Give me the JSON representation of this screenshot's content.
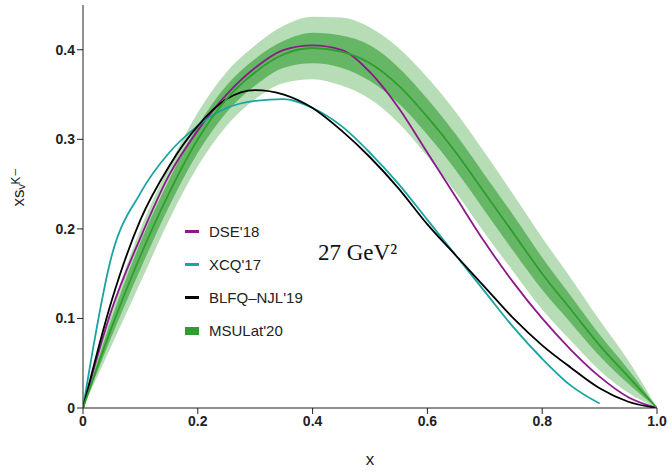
{
  "chart_data": {
    "type": "line",
    "annotation": "27 GeV²",
    "x_label": "x",
    "y_label": "xsᵥᴷ⁻",
    "x": [
      0,
      0.05,
      0.1,
      0.15,
      0.2,
      0.25,
      0.3,
      0.35,
      0.4,
      0.45,
      0.5,
      0.55,
      0.6,
      0.65,
      0.7,
      0.75,
      0.8,
      0.85,
      0.9,
      0.95,
      1.0
    ],
    "xlim": [
      0,
      1
    ],
    "xticks": [
      0,
      0.2,
      0.4,
      0.6,
      0.8,
      {
        "value": 1,
        "label": "1.0"
      }
    ],
    "ylim": [
      0,
      0.45
    ],
    "yticks": [
      0,
      0.1,
      0.2,
      0.3,
      0.4
    ],
    "legend": "lower left",
    "grid": false,
    "series": [
      {
        "name": "DSE'18",
        "color": "#8b1a8b",
        "values": [
          0,
          0.11,
          0.19,
          0.26,
          0.31,
          0.35,
          0.38,
          0.4,
          0.405,
          0.4,
          0.375,
          0.335,
          0.285,
          0.235,
          0.185,
          0.14,
          0.1,
          0.065,
          0.035,
          0.012,
          0
        ]
      },
      {
        "name": "XCQ'17",
        "color": "#1aa3a3",
        "values": [
          0,
          0.17,
          0.24,
          0.285,
          0.315,
          0.335,
          0.343,
          0.345,
          0.335,
          0.315,
          0.285,
          0.25,
          0.21,
          0.17,
          0.13,
          0.09,
          0.055,
          0.025,
          0.005,
          null,
          null
        ]
      },
      {
        "name": "BLFQ–NJL'19",
        "color": "#000000",
        "values": [
          0,
          0.12,
          0.21,
          0.27,
          0.315,
          0.345,
          0.355,
          0.35,
          0.335,
          0.31,
          0.28,
          0.245,
          0.205,
          0.17,
          0.135,
          0.1,
          0.07,
          0.045,
          0.022,
          0.007,
          0
        ]
      },
      {
        "name": "MSULat'20",
        "color": "#2e9e2e",
        "values": [
          0,
          0.09,
          0.17,
          0.24,
          0.3,
          0.345,
          0.375,
          0.395,
          0.402,
          0.398,
          0.385,
          0.36,
          0.325,
          0.285,
          0.24,
          0.195,
          0.15,
          0.11,
          0.07,
          0.035,
          0
        ],
        "inner_lower": [
          0,
          0.08,
          0.155,
          0.225,
          0.285,
          0.33,
          0.36,
          0.38,
          0.385,
          0.38,
          0.365,
          0.34,
          0.305,
          0.265,
          0.22,
          0.175,
          0.132,
          0.095,
          0.058,
          0.027,
          0
        ],
        "inner_upper": [
          0,
          0.1,
          0.185,
          0.255,
          0.315,
          0.36,
          0.39,
          0.41,
          0.419,
          0.416,
          0.405,
          0.38,
          0.345,
          0.305,
          0.26,
          0.215,
          0.168,
          0.125,
          0.082,
          0.043,
          0
        ],
        "outer_lower": [
          0,
          0.07,
          0.14,
          0.21,
          0.27,
          0.315,
          0.345,
          0.363,
          0.367,
          0.36,
          0.345,
          0.318,
          0.281,
          0.24,
          0.195,
          0.152,
          0.11,
          0.075,
          0.042,
          0.017,
          0
        ],
        "outer_upper": [
          0,
          0.11,
          0.2,
          0.27,
          0.33,
          0.375,
          0.405,
          0.427,
          0.437,
          0.436,
          0.425,
          0.402,
          0.369,
          0.33,
          0.285,
          0.238,
          0.19,
          0.145,
          0.098,
          0.053,
          0
        ]
      }
    ]
  }
}
